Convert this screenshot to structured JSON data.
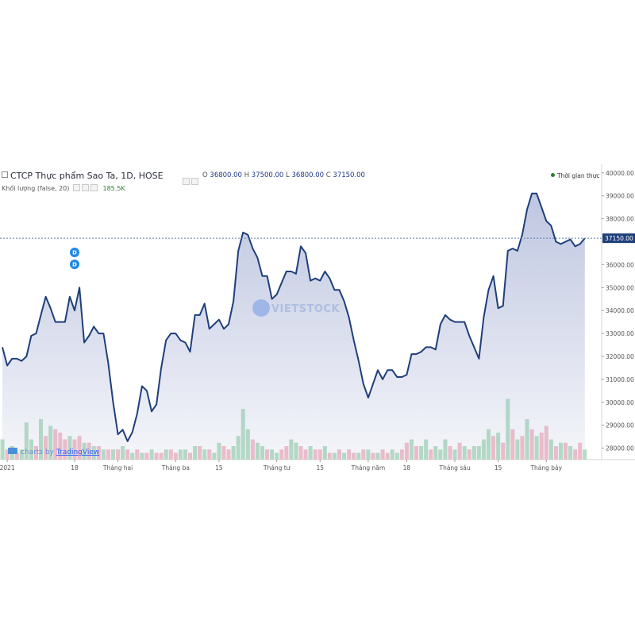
{
  "header": {
    "title": "CTCP Thực phẩm Sao Ta, 1D, HOSE",
    "ohlc": {
      "o_label": "O",
      "o": "36800.00",
      "h_label": "H",
      "h": "37500.00",
      "l_label": "L",
      "l": "36800.00",
      "c_label": "C",
      "c": "37150.00"
    },
    "volume_label": "Khối lượng (false, 20)",
    "volume_value": "185.5K",
    "realtime_label": "Thời gian thực"
  },
  "watermark": "VIETSTOCK",
  "credit": {
    "prefix": "charts by",
    "brand": "TradingView"
  },
  "colors": {
    "line": "#1f3f7a",
    "area": "#a9b3d6",
    "up": "#a8d8b9",
    "down": "#f2b3c0",
    "price_tag": "#1f3f7a"
  },
  "chart_data": {
    "type": "area",
    "xlabels": [
      "2021",
      "18",
      "Tháng hai",
      "Tháng ba",
      "15",
      "Tháng tư",
      "15",
      "Tháng năm",
      "18",
      "Tháng sáu",
      "15",
      "Tháng bảy"
    ],
    "ylim": [
      27500,
      40200
    ],
    "yticks": [
      28000,
      29000,
      30000,
      31000,
      32000,
      33000,
      34000,
      35000,
      36000,
      37000,
      38000,
      39000,
      40000
    ],
    "ytick_labels": [
      "28000.00",
      "29000.00",
      "30000.00",
      "31000.00",
      "32000.00",
      "33000.00",
      "34000.00",
      "35000.00",
      "36000.00",
      "37000.00",
      "38000.00",
      "39000.00",
      "40000.00"
    ],
    "current_price": 37150,
    "current_price_label": "37150.00",
    "close": [
      32400,
      31600,
      31900,
      31900,
      31800,
      32000,
      32900,
      33000,
      33800,
      34600,
      34100,
      33500,
      33500,
      33500,
      34600,
      34000,
      35000,
      32600,
      32900,
      33300,
      33000,
      33000,
      31700,
      30000,
      28600,
      28800,
      28300,
      28700,
      29500,
      30700,
      30500,
      29600,
      29900,
      31500,
      32700,
      33000,
      33000,
      32700,
      32600,
      32200,
      33800,
      33800,
      34300,
      33200,
      33400,
      33600,
      33200,
      33400,
      34400,
      36600,
      37400,
      37300,
      36700,
      36300,
      35500,
      35500,
      34500,
      34700,
      35200,
      35700,
      35700,
      35600,
      36800,
      36500,
      35300,
      35400,
      35300,
      35700,
      35400,
      34900,
      34900,
      34400,
      33700,
      32700,
      31800,
      30800,
      30200,
      30800,
      31400,
      31000,
      31400,
      31400,
      31100,
      31100,
      31200,
      32100,
      32100,
      32200,
      32400,
      32400,
      32300,
      33400,
      33800,
      33600,
      33500,
      33500,
      33500,
      32900,
      32400,
      31900,
      33700,
      34900,
      35500,
      34100,
      34200,
      36600,
      36700,
      36600,
      37300,
      38400,
      39100,
      39100,
      38500,
      37900,
      37700,
      37000,
      36900,
      37000,
      37100,
      36800,
      36900,
      37150
    ],
    "volume": [
      {
        "v": 0.3,
        "up": true
      },
      {
        "v": 0.15,
        "up": false
      },
      {
        "v": 0.2,
        "up": true
      },
      {
        "v": 0.1,
        "up": false
      },
      {
        "v": 0.15,
        "up": true
      },
      {
        "v": 0.55,
        "up": true
      },
      {
        "v": 0.3,
        "up": true
      },
      {
        "v": 0.2,
        "up": false
      },
      {
        "v": 0.6,
        "up": true
      },
      {
        "v": 0.35,
        "up": false
      },
      {
        "v": 0.5,
        "up": true
      },
      {
        "v": 0.45,
        "up": false
      },
      {
        "v": 0.4,
        "up": false
      },
      {
        "v": 0.3,
        "up": false
      },
      {
        "v": 0.35,
        "up": true
      },
      {
        "v": 0.3,
        "up": false
      },
      {
        "v": 0.35,
        "up": false
      },
      {
        "v": 0.25,
        "up": true
      },
      {
        "v": 0.25,
        "up": false
      },
      {
        "v": 0.2,
        "up": true
      },
      {
        "v": 0.2,
        "up": false
      },
      {
        "v": 0.15,
        "up": true
      },
      {
        "v": 0.15,
        "up": false
      },
      {
        "v": 0.15,
        "up": true
      },
      {
        "v": 0.15,
        "up": false
      },
      {
        "v": 0.2,
        "up": true
      },
      {
        "v": 0.15,
        "up": false
      },
      {
        "v": 0.1,
        "up": true
      },
      {
        "v": 0.15,
        "up": false
      },
      {
        "v": 0.1,
        "up": true
      },
      {
        "v": 0.1,
        "up": false
      },
      {
        "v": 0.15,
        "up": true
      },
      {
        "v": 0.1,
        "up": false
      },
      {
        "v": 0.1,
        "up": false
      },
      {
        "v": 0.15,
        "up": true
      },
      {
        "v": 0.15,
        "up": false
      },
      {
        "v": 0.1,
        "up": false
      },
      {
        "v": 0.15,
        "up": true
      },
      {
        "v": 0.15,
        "up": true
      },
      {
        "v": 0.1,
        "up": false
      },
      {
        "v": 0.2,
        "up": true
      },
      {
        "v": 0.2,
        "up": false
      },
      {
        "v": 0.15,
        "up": true
      },
      {
        "v": 0.15,
        "up": false
      },
      {
        "v": 0.1,
        "up": true
      },
      {
        "v": 0.25,
        "up": true
      },
      {
        "v": 0.2,
        "up": false
      },
      {
        "v": 0.15,
        "up": false
      },
      {
        "v": 0.2,
        "up": true
      },
      {
        "v": 0.35,
        "up": true
      },
      {
        "v": 0.75,
        "up": true
      },
      {
        "v": 0.45,
        "up": true
      },
      {
        "v": 0.3,
        "up": false
      },
      {
        "v": 0.25,
        "up": true
      },
      {
        "v": 0.2,
        "up": true
      },
      {
        "v": 0.15,
        "up": false
      },
      {
        "v": 0.15,
        "up": true
      },
      {
        "v": 0.1,
        "up": true
      },
      {
        "v": 0.15,
        "up": false
      },
      {
        "v": 0.2,
        "up": false
      },
      {
        "v": 0.3,
        "up": true
      },
      {
        "v": 0.25,
        "up": true
      },
      {
        "v": 0.2,
        "up": false
      },
      {
        "v": 0.15,
        "up": false
      },
      {
        "v": 0.2,
        "up": true
      },
      {
        "v": 0.15,
        "up": false
      },
      {
        "v": 0.15,
        "up": false
      },
      {
        "v": 0.2,
        "up": true
      },
      {
        "v": 0.1,
        "up": false
      },
      {
        "v": 0.1,
        "up": true
      },
      {
        "v": 0.15,
        "up": false
      },
      {
        "v": 0.1,
        "up": true
      },
      {
        "v": 0.15,
        "up": false
      },
      {
        "v": 0.1,
        "up": false
      },
      {
        "v": 0.1,
        "up": true
      },
      {
        "v": 0.15,
        "up": false
      },
      {
        "v": 0.15,
        "up": true
      },
      {
        "v": 0.1,
        "up": false
      },
      {
        "v": 0.1,
        "up": true
      },
      {
        "v": 0.15,
        "up": false
      },
      {
        "v": 0.1,
        "up": false
      },
      {
        "v": 0.15,
        "up": true
      },
      {
        "v": 0.1,
        "up": true
      },
      {
        "v": 0.15,
        "up": false
      },
      {
        "v": 0.25,
        "up": false
      },
      {
        "v": 0.3,
        "up": true
      },
      {
        "v": 0.2,
        "up": false
      },
      {
        "v": 0.2,
        "up": true
      },
      {
        "v": 0.3,
        "up": true
      },
      {
        "v": 0.15,
        "up": false
      },
      {
        "v": 0.2,
        "up": true
      },
      {
        "v": 0.15,
        "up": true
      },
      {
        "v": 0.3,
        "up": true
      },
      {
        "v": 0.2,
        "up": false
      },
      {
        "v": 0.15,
        "up": true
      },
      {
        "v": 0.25,
        "up": false
      },
      {
        "v": 0.2,
        "up": true
      },
      {
        "v": 0.15,
        "up": false
      },
      {
        "v": 0.2,
        "up": true
      },
      {
        "v": 0.2,
        "up": true
      },
      {
        "v": 0.3,
        "up": true
      },
      {
        "v": 0.45,
        "up": true
      },
      {
        "v": 0.35,
        "up": false
      },
      {
        "v": 0.4,
        "up": true
      },
      {
        "v": 0.25,
        "up": false
      },
      {
        "v": 0.9,
        "up": true
      },
      {
        "v": 0.45,
        "up": false
      },
      {
        "v": 0.3,
        "up": true
      },
      {
        "v": 0.35,
        "up": false
      },
      {
        "v": 0.6,
        "up": true
      },
      {
        "v": 0.45,
        "up": false
      },
      {
        "v": 0.35,
        "up": true
      },
      {
        "v": 0.4,
        "up": false
      },
      {
        "v": 0.5,
        "up": false
      },
      {
        "v": 0.3,
        "up": true
      },
      {
        "v": 0.2,
        "up": false
      },
      {
        "v": 0.25,
        "up": true
      },
      {
        "v": 0.25,
        "up": false
      },
      {
        "v": 0.2,
        "up": true
      },
      {
        "v": 0.15,
        "up": false
      },
      {
        "v": 0.25,
        "up": false
      },
      {
        "v": 0.15,
        "up": true
      }
    ],
    "dividend_markers": [
      "D",
      "D"
    ]
  }
}
